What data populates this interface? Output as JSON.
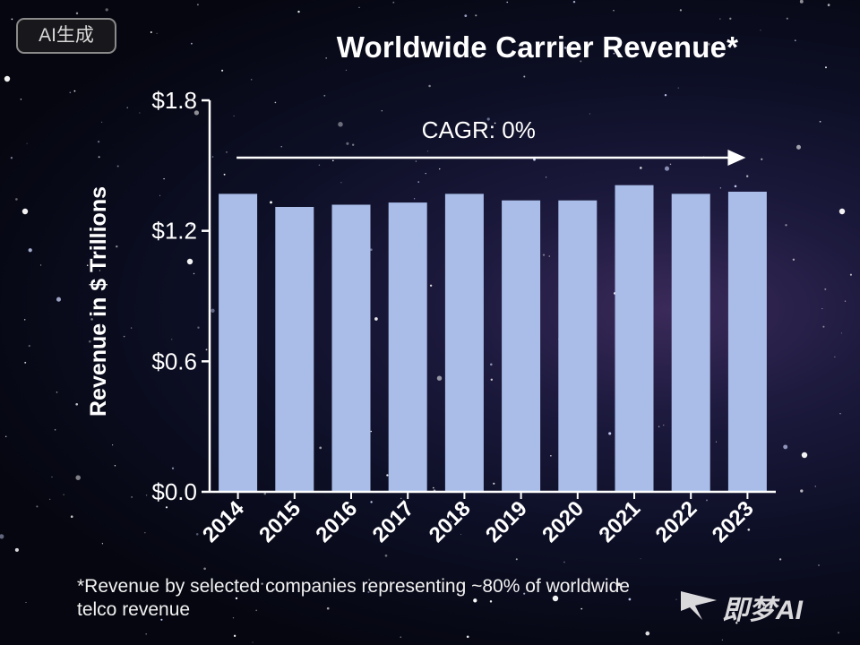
{
  "badge": {
    "label": "AI生成"
  },
  "watermark": {
    "label": "即梦AI"
  },
  "footnote": {
    "line1": "*Revenue by selected companies representing ~80% of worldwide",
    "line2": "telco revenue"
  },
  "colors": {
    "bar": "#a9bde8",
    "axis": "#ffffff",
    "text": "#ffffff"
  },
  "chart_data": {
    "type": "bar",
    "title": "Worldwide Carrier Revenue*",
    "xlabel": "",
    "ylabel": "Revenue in $ Trillions",
    "categories": [
      "2014",
      "2015",
      "2016",
      "2017",
      "2018",
      "2019",
      "2020",
      "2021",
      "2022",
      "2023"
    ],
    "values": [
      1.37,
      1.31,
      1.32,
      1.33,
      1.37,
      1.34,
      1.34,
      1.41,
      1.37,
      1.38
    ],
    "ylim": [
      0,
      1.8
    ],
    "yticks": [
      {
        "value": 0.0,
        "label": "$0.0"
      },
      {
        "value": 0.6,
        "label": "$0.6"
      },
      {
        "value": 1.2,
        "label": "$1.2"
      },
      {
        "value": 1.8,
        "label": "$1.8"
      }
    ],
    "annotation": {
      "text": "CAGR: 0%",
      "from": "2014",
      "to": "2023"
    },
    "grid": false,
    "legend": "none"
  }
}
